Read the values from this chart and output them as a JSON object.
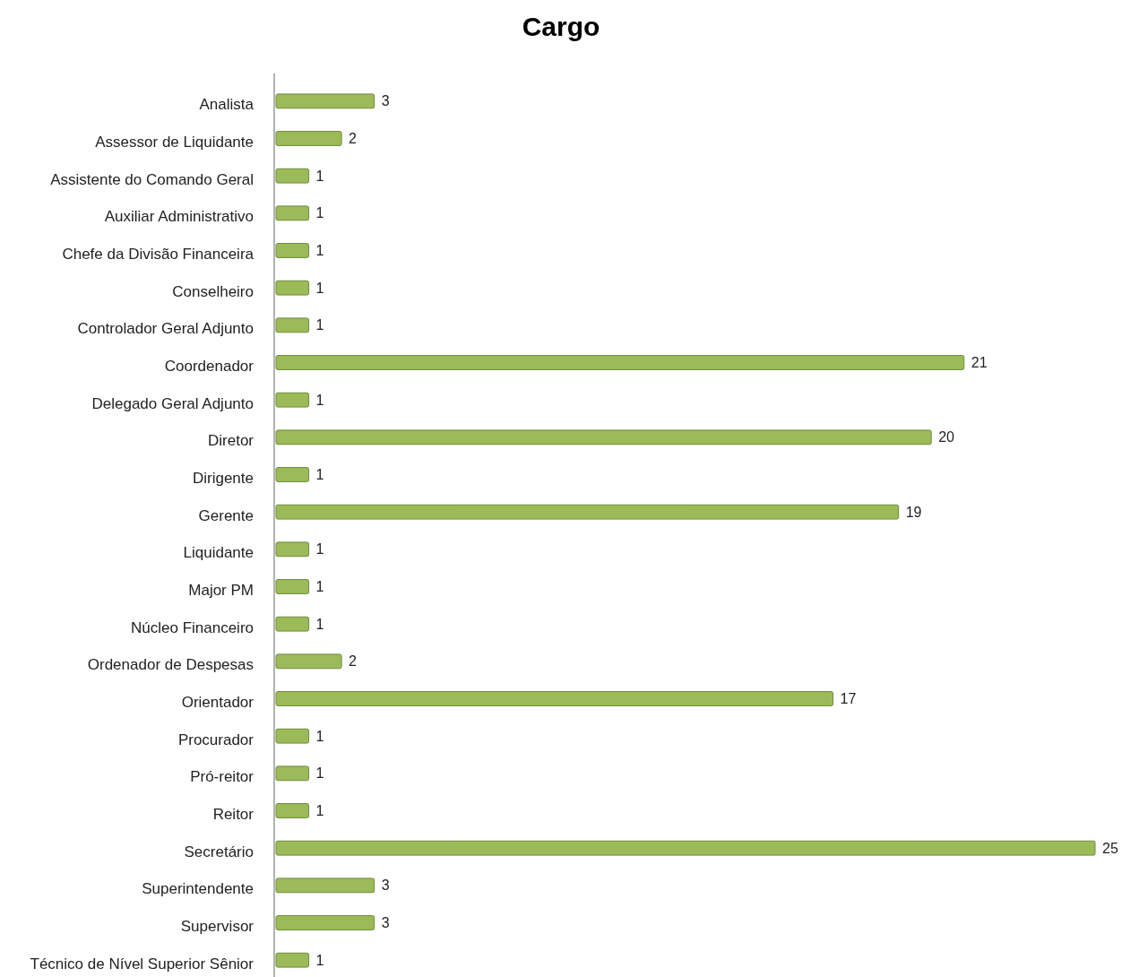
{
  "chart_data": {
    "type": "bar",
    "title": "Cargo",
    "orientation": "horizontal",
    "data_labels": true,
    "relative": false,
    "color": "#9bbb59",
    "categories": [
      "Analista",
      "Assessor de Liquidante",
      "Assistente do Comando Geral",
      "Auxiliar Administrativo",
      "Chefe da Divisão Financeira",
      "Conselheiro",
      "Controlador Geral Adjunto",
      "Coordenador",
      "Delegado Geral Adjunto",
      "Diretor",
      "Dirigente",
      "Gerente",
      "Liquidante",
      "Major PM",
      "Núcleo Financeiro",
      "Ordenador de Despesas",
      "Orientador",
      "Procurador",
      "Pró-reitor",
      "Reitor",
      "Secretário",
      "Superintendente",
      "Supervisor",
      "Técnico de Nível Superior Sênior"
    ],
    "values": [
      3,
      2,
      1,
      1,
      1,
      1,
      1,
      21,
      1,
      20,
      1,
      19,
      1,
      1,
      1,
      2,
      17,
      1,
      1,
      1,
      25,
      3,
      3,
      1
    ]
  }
}
